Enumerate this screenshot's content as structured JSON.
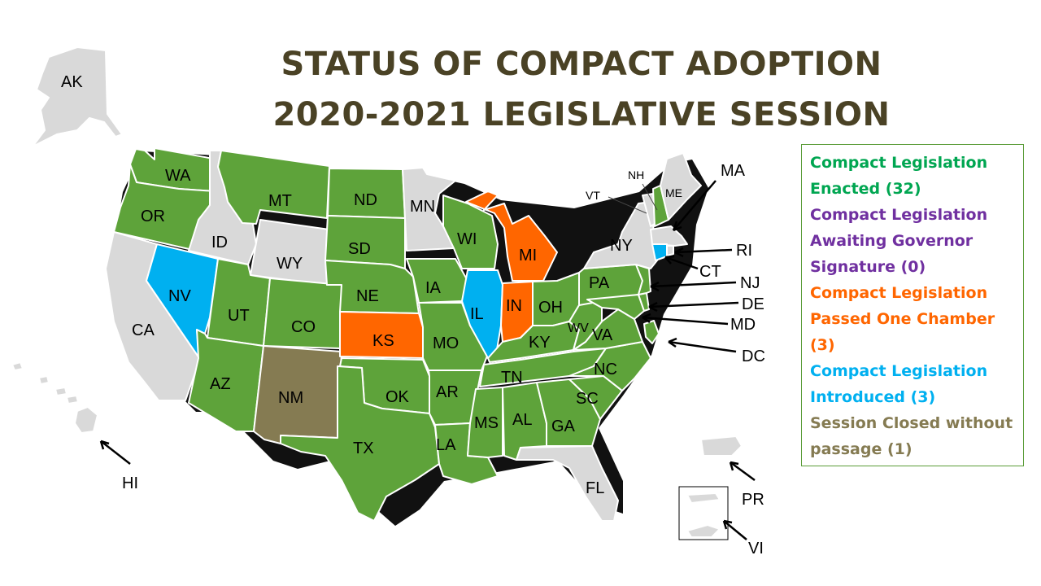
{
  "title": {
    "line1": "STATUS OF COMPACT ADOPTION",
    "line2": "2020-2021 LEGISLATIVE SESSION"
  },
  "colors": {
    "enacted": "#5ea33a",
    "awaiting_governor": "#7030a0",
    "passed_one_chamber": "#ff6600",
    "introduced": "#00b0f0",
    "session_closed": "#857b52",
    "none": "#d9d9d9"
  },
  "legend": [
    {
      "text": "Compact Legislation Enacted (32)",
      "status": "enacted",
      "text_color": "#00a651"
    },
    {
      "text": "Compact Legislation Awaiting Governor Signature (0)",
      "status": "awaiting_governor",
      "text_color": "#7030a0"
    },
    {
      "text": "Compact Legislation Passed One Chamber (3)",
      "status": "passed_one_chamber",
      "text_color": "#ff6600"
    },
    {
      "text": "Compact Legislation Introduced (3)",
      "status": "introduced",
      "text_color": "#00b0f0"
    },
    {
      "text": "Session Closed without passage (1)",
      "status": "session_closed",
      "text_color": "#857b52"
    }
  ],
  "states": {
    "WA": {
      "label": "WA",
      "status": "enacted"
    },
    "OR": {
      "label": "OR",
      "status": "enacted"
    },
    "CA": {
      "label": "CA",
      "status": "none"
    },
    "NV": {
      "label": "NV",
      "status": "introduced"
    },
    "ID": {
      "label": "ID",
      "status": "none"
    },
    "MT": {
      "label": "MT",
      "status": "enacted"
    },
    "WY": {
      "label": "WY",
      "status": "none"
    },
    "UT": {
      "label": "UT",
      "status": "enacted"
    },
    "AZ": {
      "label": "AZ",
      "status": "enacted"
    },
    "CO": {
      "label": "CO",
      "status": "enacted"
    },
    "NM": {
      "label": "NM",
      "status": "session_closed"
    },
    "ND": {
      "label": "ND",
      "status": "enacted"
    },
    "SD": {
      "label": "SD",
      "status": "enacted"
    },
    "NE": {
      "label": "NE",
      "status": "enacted"
    },
    "KS": {
      "label": "KS",
      "status": "passed_one_chamber"
    },
    "OK": {
      "label": "OK",
      "status": "enacted"
    },
    "TX": {
      "label": "TX",
      "status": "enacted"
    },
    "MN": {
      "label": "MN",
      "status": "none"
    },
    "IA": {
      "label": "IA",
      "status": "enacted"
    },
    "MO": {
      "label": "MO",
      "status": "enacted"
    },
    "AR": {
      "label": "AR",
      "status": "enacted"
    },
    "LA": {
      "label": "LA",
      "status": "enacted"
    },
    "WI": {
      "label": "WI",
      "status": "enacted"
    },
    "IL": {
      "label": "IL",
      "status": "introduced"
    },
    "MI": {
      "label": "MI",
      "status": "passed_one_chamber"
    },
    "IN": {
      "label": "IN",
      "status": "passed_one_chamber"
    },
    "OH": {
      "label": "OH",
      "status": "enacted"
    },
    "KY": {
      "label": "KY",
      "status": "enacted"
    },
    "TN": {
      "label": "TN",
      "status": "enacted"
    },
    "MS": {
      "label": "MS",
      "status": "enacted"
    },
    "AL": {
      "label": "AL",
      "status": "enacted"
    },
    "GA": {
      "label": "GA",
      "status": "enacted"
    },
    "FL": {
      "label": "FL",
      "status": "none"
    },
    "SC": {
      "label": "SC",
      "status": "enacted"
    },
    "NC": {
      "label": "NC",
      "status": "enacted"
    },
    "VA": {
      "label": "VA",
      "status": "enacted"
    },
    "WV": {
      "label": "WV",
      "status": "enacted"
    },
    "PA": {
      "label": "PA",
      "status": "enacted"
    },
    "NY": {
      "label": "NY",
      "status": "none"
    },
    "VT": {
      "label": "VT",
      "status": "none"
    },
    "NH": {
      "label": "NH",
      "status": "enacted"
    },
    "ME": {
      "label": "ME",
      "status": "none"
    },
    "MA": {
      "label": "MA",
      "status": "none"
    },
    "RI": {
      "label": "RI",
      "status": "none"
    },
    "CT": {
      "label": "CT",
      "status": "introduced"
    },
    "NJ": {
      "label": "NJ",
      "status": "enacted"
    },
    "DE": {
      "label": "DE",
      "status": "enacted"
    },
    "MD": {
      "label": "MD",
      "status": "enacted"
    },
    "DC": {
      "label": "DC",
      "status": "enacted"
    },
    "AK": {
      "label": "AK",
      "status": "none"
    },
    "HI": {
      "label": "HI",
      "status": "none"
    },
    "PR": {
      "label": "PR",
      "status": "none"
    },
    "VI": {
      "label": "VI",
      "status": "none"
    }
  }
}
